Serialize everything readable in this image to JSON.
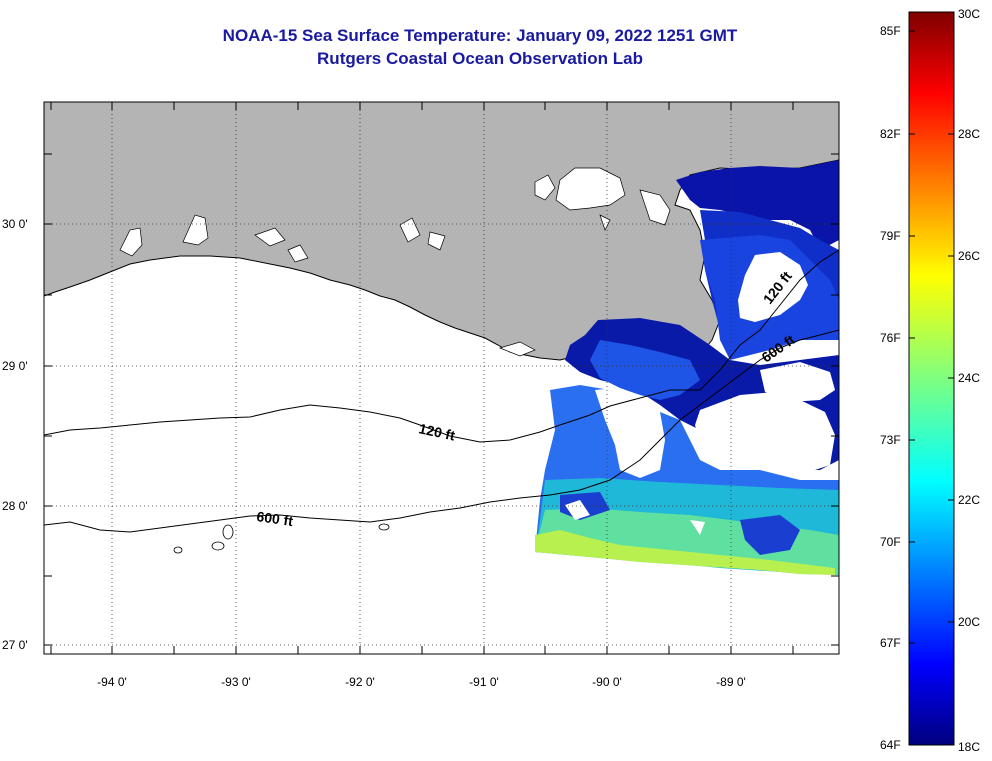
{
  "title_line1": "NOAA-15 Sea Surface Temperature:  January 09, 2022 1251 GMT",
  "title_line2": "Rutgers Coastal Ocean Observation Lab",
  "map": {
    "lon_labels": [
      "-94 0'",
      "-93 0'",
      "-92 0'",
      "-91 0'",
      "-90 0'",
      "-89 0'"
    ],
    "lat_labels": [
      "30 0'",
      "29 0'",
      "28 0'",
      "27 0'"
    ],
    "contour_labels": [
      "120 ft",
      "600 ft",
      "120 ft",
      "600 ft"
    ],
    "colors": {
      "land": "#b4b4b4",
      "ocean_no_data": "#ffffff",
      "frame": "#000000"
    }
  },
  "colorbar": {
    "range_c": [
      18,
      30
    ],
    "range_f": [
      64,
      85
    ],
    "labels_f": [
      "85F",
      "82F",
      "79F",
      "76F",
      "73F",
      "70F",
      "67F",
      "64F"
    ],
    "labels_c": [
      "30C",
      "28C",
      "26C",
      "24C",
      "22C",
      "20C",
      "18C"
    ],
    "colormap": "jet"
  }
}
